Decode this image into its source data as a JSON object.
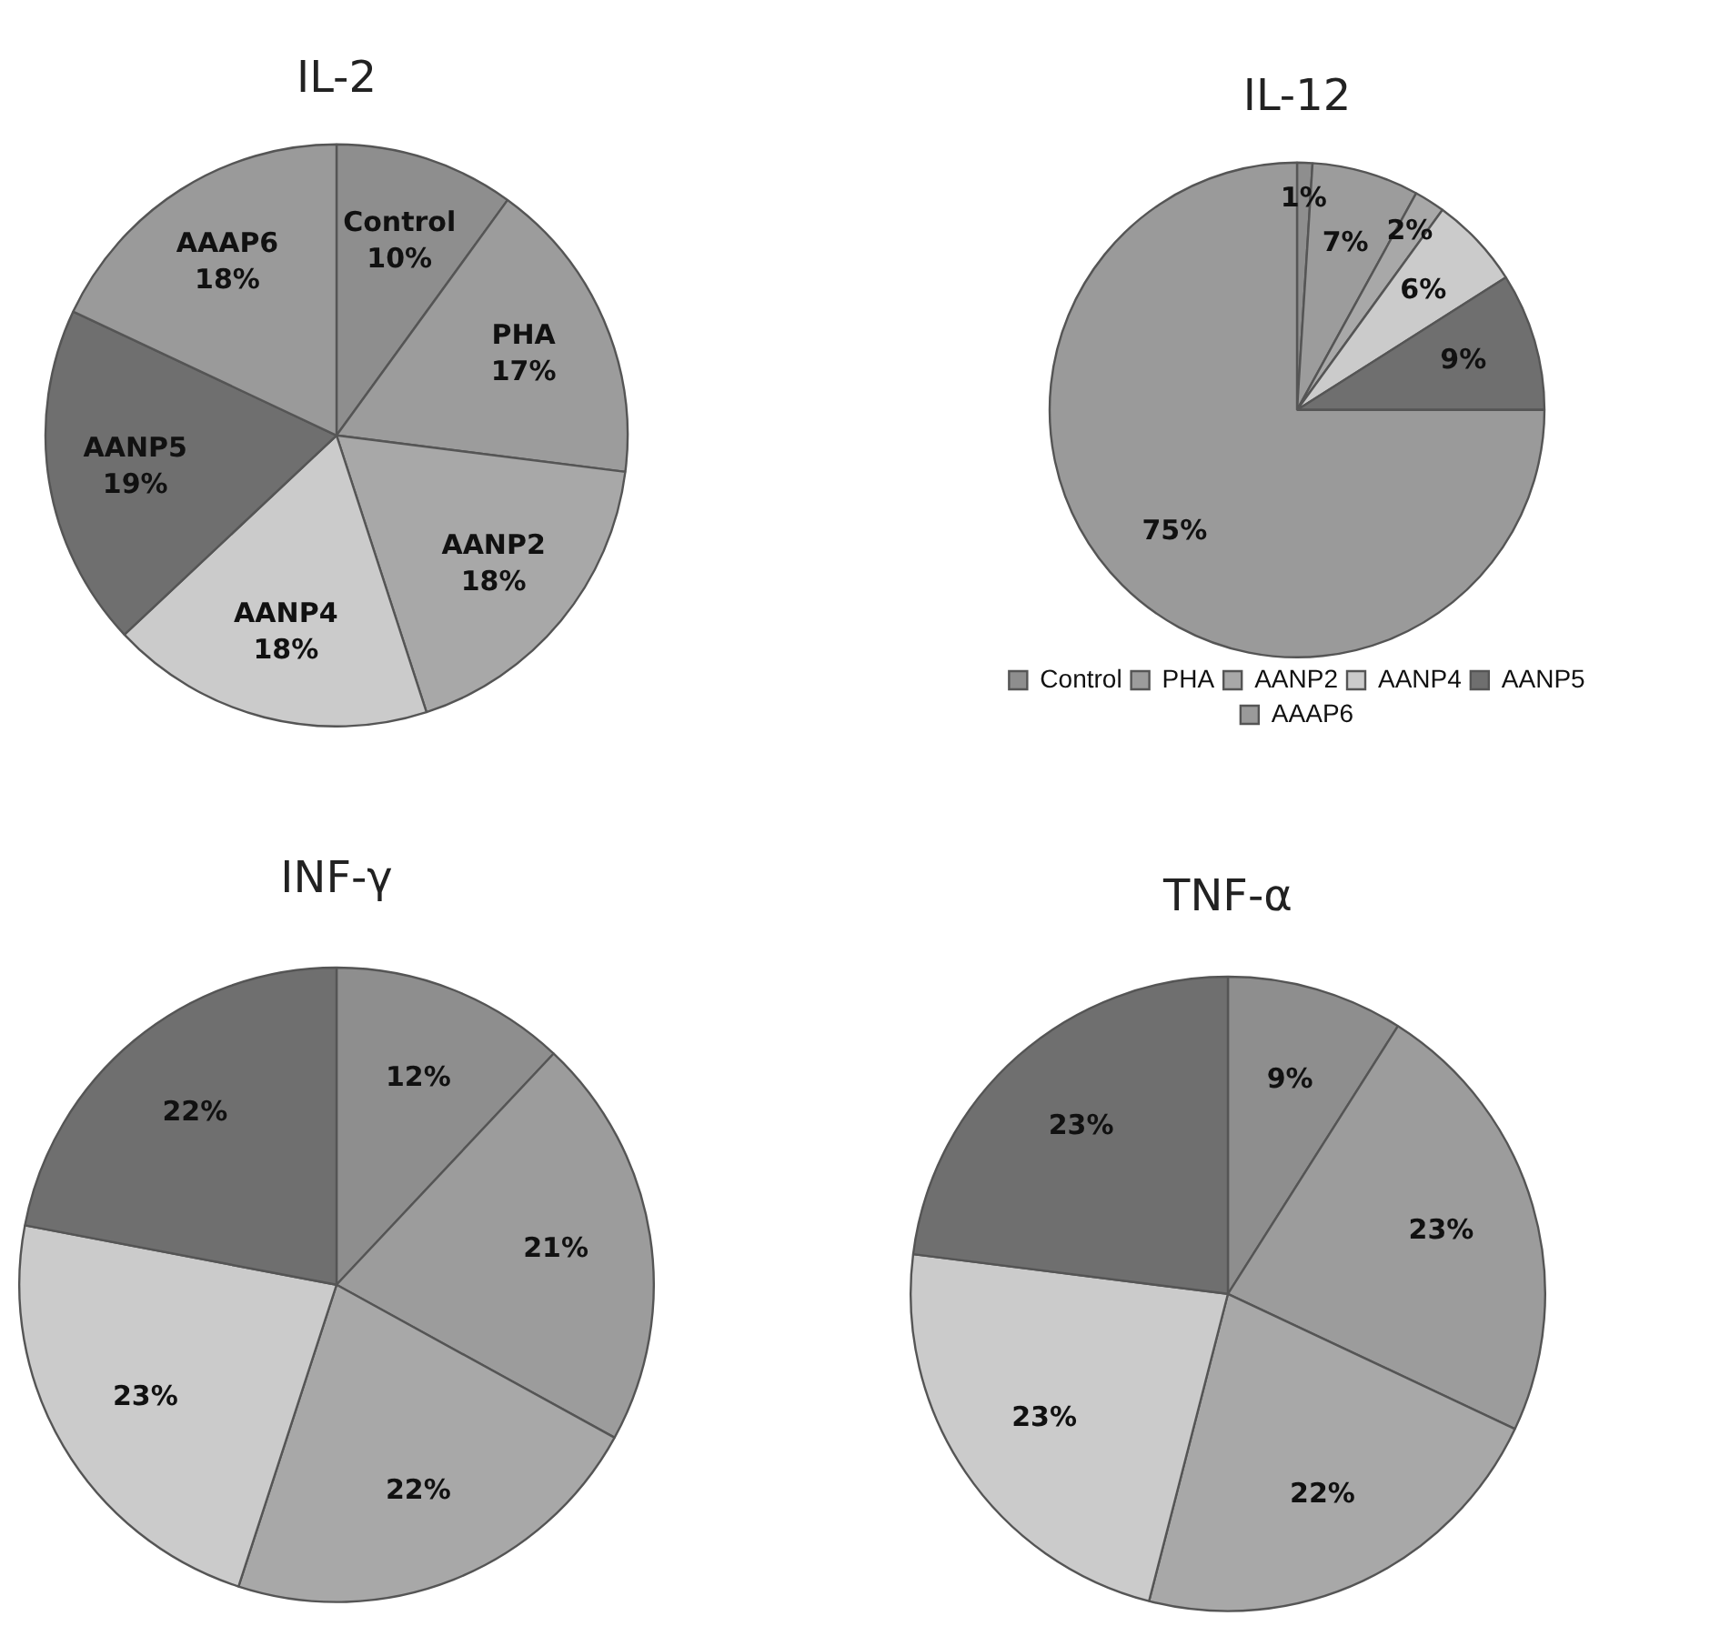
{
  "chart_data": [
    {
      "type": "pie",
      "title": "IL-2",
      "categories": [
        "Control",
        "PHA",
        "AANP2",
        "AANP4",
        "AANP5",
        "AAAP6"
      ],
      "values": [
        10,
        17,
        18,
        18,
        19,
        18
      ],
      "colors": [
        "#8e8e8e",
        "#9c9c9c",
        "#a8a8a8",
        "#cbcbcb",
        "#6f6f6f",
        "#9a9a9a"
      ],
      "value_labels": [
        "10%",
        "17%",
        "18%",
        "18%",
        "19%",
        "18%"
      ],
      "legend": false
    },
    {
      "type": "pie",
      "title": "IL-12",
      "categories": [
        "Control",
        "PHA",
        "AANP2",
        "AANP4",
        "AANP5",
        "AAAP6"
      ],
      "values": [
        1,
        7,
        2,
        6,
        9,
        75
      ],
      "colors": [
        "#8e8e8e",
        "#9c9c9c",
        "#a8a8a8",
        "#cbcbcb",
        "#6f6f6f",
        "#9a9a9a"
      ],
      "value_labels": [
        "1%",
        "7%",
        "2%",
        "6%",
        "9%",
        "75%"
      ],
      "legend": "bottom"
    },
    {
      "type": "pie",
      "title": "INF-γ",
      "categories": [
        null,
        null,
        null,
        null,
        null
      ],
      "values": [
        12,
        21,
        22,
        23,
        22
      ],
      "colors": [
        "#8e8e8e",
        "#9c9c9c",
        "#a8a8a8",
        "#cbcbcb",
        "#6f6f6f"
      ],
      "value_labels": [
        "12%",
        "21%",
        "22%",
        "23%",
        "22%"
      ],
      "legend": false
    },
    {
      "type": "pie",
      "title": "TNF-α",
      "categories": [
        null,
        null,
        null,
        null,
        null
      ],
      "values": [
        9,
        23,
        22,
        23,
        23
      ],
      "colors": [
        "#8e8e8e",
        "#9c9c9c",
        "#a8a8a8",
        "#cbcbcb",
        "#6f6f6f"
      ],
      "value_labels": [
        "9%",
        "23%",
        "22%",
        "23%",
        "23%"
      ],
      "legend": false
    }
  ]
}
